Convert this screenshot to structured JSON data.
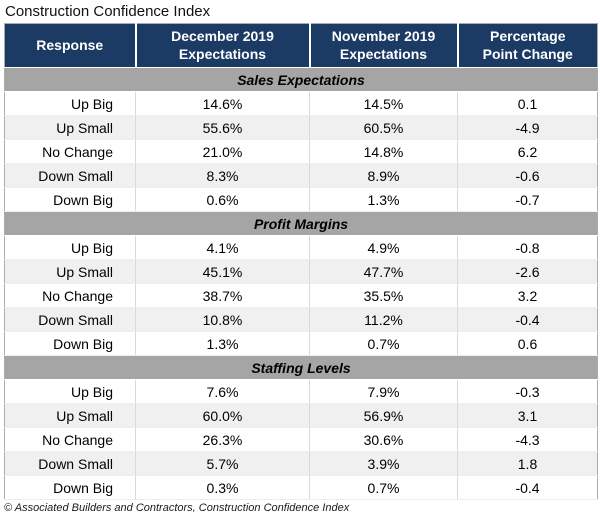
{
  "title": "Construction Confidence Index",
  "source_note": "© Associated Builders and Contractors, Construction Confidence Index",
  "colors": {
    "header_bg": "#1B3A64",
    "header_text": "#FFFFFF",
    "section_bg": "#A5A5A5",
    "row_bg": "#FFFFFF",
    "row_alt_bg": "#F0F0F0",
    "grid_line": "#D9D9D9",
    "outer_border": "#ABABAB"
  },
  "chart_data": {
    "type": "table",
    "title": "Construction Confidence Index",
    "columns": [
      "Response",
      "December 2019\nExpectations",
      "November 2019\nExpectations",
      "Percentage\nPoint Change"
    ],
    "sections": [
      {
        "name": "Sales Expectations",
        "rows": [
          {
            "response": "Up Big",
            "december": "14.6%",
            "november": "14.5%",
            "change": "0.1"
          },
          {
            "response": "Up Small",
            "december": "55.6%",
            "november": "60.5%",
            "change": "-4.9"
          },
          {
            "response": "No Change",
            "december": "21.0%",
            "november": "14.8%",
            "change": "6.2"
          },
          {
            "response": "Down Small",
            "december": "8.3%",
            "november": "8.9%",
            "change": "-0.6"
          },
          {
            "response": "Down Big",
            "december": "0.6%",
            "november": "1.3%",
            "change": "-0.7"
          }
        ]
      },
      {
        "name": "Profit Margins",
        "rows": [
          {
            "response": "Up Big",
            "december": "4.1%",
            "november": "4.9%",
            "change": "-0.8"
          },
          {
            "response": "Up Small",
            "december": "45.1%",
            "november": "47.7%",
            "change": "-2.6"
          },
          {
            "response": "No Change",
            "december": "38.7%",
            "november": "35.5%",
            "change": "3.2"
          },
          {
            "response": "Down Small",
            "december": "10.8%",
            "november": "11.2%",
            "change": "-0.4"
          },
          {
            "response": "Down Big",
            "december": "1.3%",
            "november": "0.7%",
            "change": "0.6"
          }
        ]
      },
      {
        "name": "Staffing Levels",
        "rows": [
          {
            "response": "Up Big",
            "december": "7.6%",
            "november": "7.9%",
            "change": "-0.3"
          },
          {
            "response": "Up Small",
            "december": "60.0%",
            "november": "56.9%",
            "change": "3.1"
          },
          {
            "response": "No Change",
            "december": "26.3%",
            "november": "30.6%",
            "change": "-4.3"
          },
          {
            "response": "Down Small",
            "december": "5.7%",
            "november": "3.9%",
            "change": "1.8"
          },
          {
            "response": "Down Big",
            "december": "0.3%",
            "november": "0.7%",
            "change": "-0.4"
          }
        ]
      }
    ]
  }
}
